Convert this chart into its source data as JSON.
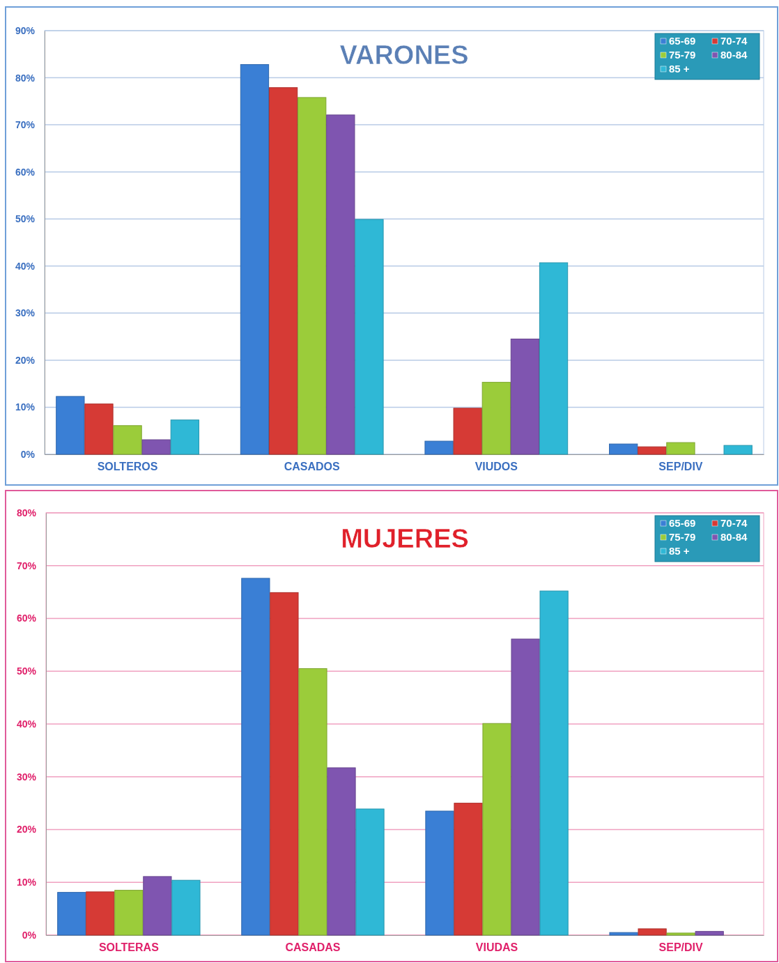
{
  "chart_data": [
    {
      "type": "bar",
      "title": "VARONES",
      "categories": [
        "SOLTEROS",
        "CASADOS",
        "VIUDOS",
        "SEP/DIV"
      ],
      "series": [
        {
          "name": "65-69",
          "color": "#3a7fd5",
          "values": [
            12.3,
            82.8,
            2.8,
            2.2
          ]
        },
        {
          "name": "70-74",
          "color": "#d63a35",
          "values": [
            10.7,
            77.9,
            9.8,
            1.6
          ]
        },
        {
          "name": "75-79",
          "color": "#9bcc3a",
          "values": [
            6.1,
            75.8,
            15.3,
            2.5
          ]
        },
        {
          "name": "80-84",
          "color": "#7f55b0",
          "values": [
            3.1,
            72.1,
            24.5,
            0
          ]
        },
        {
          "name": "85 +",
          "color": "#2fb8d6",
          "values": [
            7.3,
            49.9,
            40.7,
            1.9
          ]
        }
      ],
      "ylim": [
        0,
        90
      ],
      "yticks": [
        {
          "value": 0,
          "label": "0%"
        },
        {
          "value": 10,
          "label": "10%"
        },
        {
          "value": 20,
          "label": "20%"
        },
        {
          "value": 30,
          "label": "30%"
        },
        {
          "value": 40,
          "label": "40%"
        },
        {
          "value": 50,
          "label": "50%"
        },
        {
          "value": 60,
          "label": "60%"
        },
        {
          "value": 70,
          "label": "70%"
        },
        {
          "value": 80,
          "label": "80%"
        },
        {
          "value": 90,
          "label": "90%"
        }
      ],
      "grid": "y",
      "legend": "top right"
    },
    {
      "type": "bar",
      "title": "MUJERES",
      "categories": [
        "SOLTERAS",
        "CASADAS",
        "VIUDAS",
        "SEP/DIV"
      ],
      "series": [
        {
          "name": "65-69",
          "color": "#3a7fd5",
          "values": [
            8.1,
            67.6,
            23.5,
            0.5
          ]
        },
        {
          "name": "70-74",
          "color": "#d63a35",
          "values": [
            8.2,
            64.9,
            25.0,
            1.2
          ]
        },
        {
          "name": "75-79",
          "color": "#9bcc3a",
          "values": [
            8.5,
            50.5,
            40.1,
            0.4
          ]
        },
        {
          "name": "80-84",
          "color": "#7f55b0",
          "values": [
            11.1,
            31.7,
            56.1,
            0.7
          ]
        },
        {
          "name": "85 +",
          "color": "#2fb8d6",
          "values": [
            10.4,
            23.9,
            65.2,
            0
          ]
        }
      ],
      "ylim": [
        0,
        80
      ],
      "yticks": [
        {
          "value": 0,
          "label": "0%"
        },
        {
          "value": 10,
          "label": "10%"
        },
        {
          "value": 20,
          "label": "20%"
        },
        {
          "value": 30,
          "label": "30%"
        },
        {
          "value": 40,
          "label": "40%"
        },
        {
          "value": 50,
          "label": "50%"
        },
        {
          "value": 60,
          "label": "60%"
        },
        {
          "value": 70,
          "label": "70%"
        },
        {
          "value": 80,
          "label": "80%"
        }
      ],
      "grid": "y",
      "legend": "top right"
    }
  ]
}
